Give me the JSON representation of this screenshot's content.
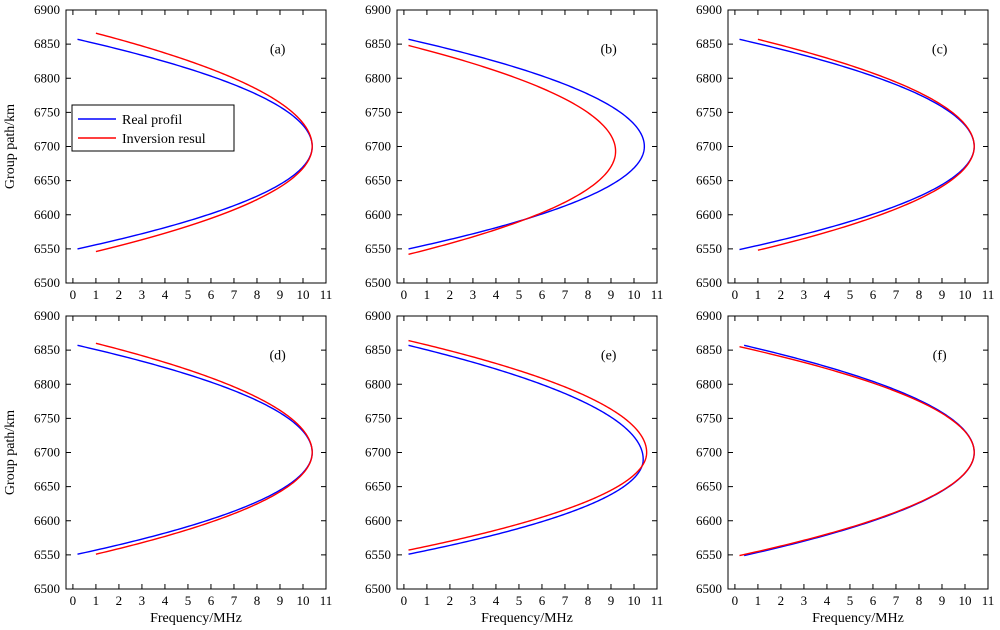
{
  "colors": {
    "real": "#0000ff",
    "inversion": "#ff0000"
  },
  "legend": {
    "real": "Real profil",
    "inversion": "Inversion resul"
  },
  "labels": {
    "xlabel": "Frequency/MHz",
    "ylabel": "Group path/km"
  },
  "axes": {
    "xlim": [
      -0.3,
      11
    ],
    "ylim": [
      6500,
      6900
    ],
    "xticks": [
      0,
      1,
      2,
      3,
      4,
      5,
      6,
      7,
      8,
      9,
      10,
      11
    ],
    "yticks": [
      6500,
      6550,
      6600,
      6650,
      6700,
      6750,
      6800,
      6850,
      6900
    ]
  },
  "chart_data": [
    {
      "type": "line",
      "panel": "(a)",
      "legend": "left-middle",
      "series": [
        {
          "name": "Real profil",
          "color": "#0000ff",
          "fmax": 10.4,
          "apex": 6700,
          "f_start": 0.2,
          "top_start": 6857,
          "bottom_start": 6550
        },
        {
          "name": "Inversion resul",
          "color": "#ff0000",
          "fmax": 10.4,
          "apex": 6700,
          "f_start": 1.0,
          "top_start": 6866,
          "bottom_start": 6546
        }
      ]
    },
    {
      "type": "line",
      "panel": "(b)",
      "series": [
        {
          "name": "Real profil",
          "color": "#0000ff",
          "fmax": 10.45,
          "apex": 6700,
          "f_start": 0.2,
          "top_start": 6857,
          "bottom_start": 6550
        },
        {
          "name": "Inversion resul",
          "color": "#ff0000",
          "fmax": 9.2,
          "apex": 6693,
          "f_start": 0.2,
          "top_start": 6848,
          "bottom_start": 6542
        }
      ]
    },
    {
      "type": "line",
      "panel": "(c)",
      "series": [
        {
          "name": "Real profil",
          "color": "#0000ff",
          "fmax": 10.4,
          "apex": 6700,
          "f_start": 0.2,
          "top_start": 6857,
          "bottom_start": 6549
        },
        {
          "name": "Inversion resul",
          "color": "#ff0000",
          "fmax": 10.4,
          "apex": 6700,
          "f_start": 1.0,
          "top_start": 6857,
          "bottom_start": 6548
        }
      ]
    },
    {
      "type": "line",
      "panel": "(d)",
      "series": [
        {
          "name": "Real profil",
          "color": "#0000ff",
          "fmax": 10.4,
          "apex": 6700,
          "f_start": 0.2,
          "top_start": 6857,
          "bottom_start": 6551
        },
        {
          "name": "Inversion resul",
          "color": "#ff0000",
          "fmax": 10.4,
          "apex": 6700,
          "f_start": 1.0,
          "top_start": 6860,
          "bottom_start": 6551
        }
      ]
    },
    {
      "type": "line",
      "panel": "(e)",
      "series": [
        {
          "name": "Real profil",
          "color": "#0000ff",
          "fmax": 10.4,
          "apex": 6690,
          "f_start": 0.2,
          "top_start": 6857,
          "bottom_start": 6551
        },
        {
          "name": "Inversion resul",
          "color": "#ff0000",
          "fmax": 10.55,
          "apex": 6700,
          "f_start": 0.2,
          "top_start": 6864,
          "bottom_start": 6557
        }
      ]
    },
    {
      "type": "line",
      "panel": "(f)",
      "series": [
        {
          "name": "Real profil",
          "color": "#0000ff",
          "fmax": 10.4,
          "apex": 6700,
          "f_start": 0.4,
          "top_start": 6857,
          "bottom_start": 6549
        },
        {
          "name": "Inversion resul",
          "color": "#ff0000",
          "fmax": 10.4,
          "apex": 6700,
          "f_start": 0.2,
          "top_start": 6855,
          "bottom_start": 6549
        }
      ]
    }
  ]
}
